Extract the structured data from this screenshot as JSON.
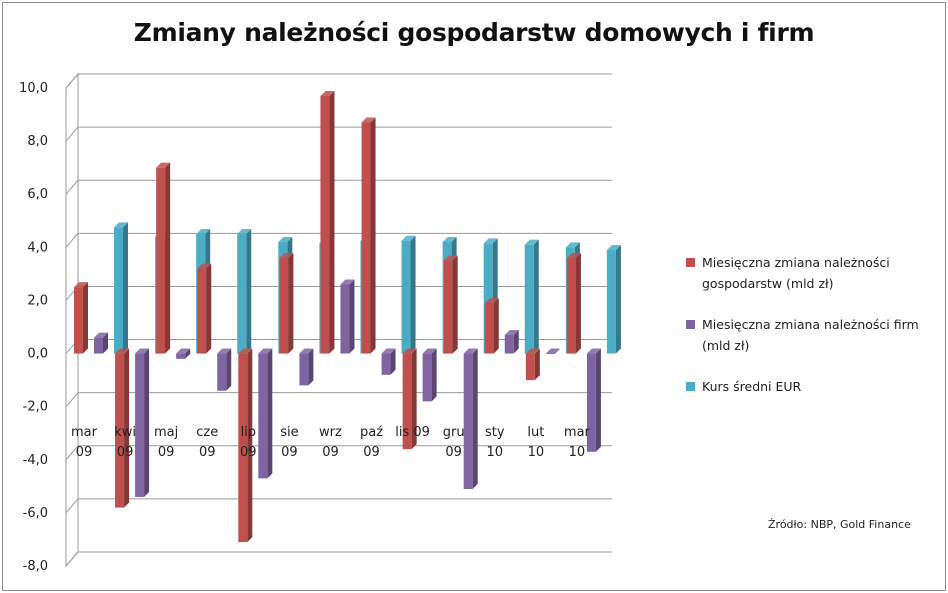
{
  "chart_data": {
    "type": "bar",
    "title": "Zmiany należności gospodarstw domowych i firm",
    "categories": [
      [
        "mar",
        "09"
      ],
      [
        "kwi",
        "09"
      ],
      [
        "maj",
        "09"
      ],
      [
        "cze",
        "09"
      ],
      [
        "lip",
        "09"
      ],
      [
        "sie",
        "09"
      ],
      [
        "wrz",
        "09"
      ],
      [
        "paź",
        "09"
      ],
      [
        "lis 09",
        ""
      ],
      [
        "gru",
        "09"
      ],
      [
        "sty",
        "10"
      ],
      [
        "lut",
        "10"
      ],
      [
        "mar",
        "10"
      ]
    ],
    "series": [
      {
        "name": "Miesięczna zmiana należności gospodarstw  (mld zł)",
        "color": "#c0504d",
        "values": [
          2.5,
          -5.8,
          7.0,
          3.2,
          -7.1,
          3.6,
          9.7,
          8.7,
          -3.6,
          3.5,
          1.9,
          -1.0,
          3.6
        ]
      },
      {
        "name": "Miesięczna zmiana należności firm (mld zł)",
        "color": "#8064a2",
        "values": [
          0.6,
          -5.4,
          -0.2,
          -1.4,
          -4.7,
          -1.2,
          2.6,
          -0.8,
          -1.8,
          -5.1,
          0.7,
          0.0,
          -3.7
        ]
      },
      {
        "name": "Kurs średni EUR",
        "color": "#4bacc6",
        "values": [
          4.75,
          4.4,
          4.5,
          4.5,
          4.2,
          4.15,
          4.25,
          4.25,
          4.2,
          4.15,
          4.1,
          4.0,
          3.9
        ]
      }
    ],
    "yticks": [
      "10,0",
      "8,0",
      "6,0",
      "4,0",
      "2,0",
      "0,0",
      "-2,0",
      "-4,0",
      "-6,0",
      "-8,0"
    ],
    "ylim": [
      -8,
      10
    ],
    "legend_position": "right",
    "grid": true
  },
  "source_note": "Źródło: NBP, Gold Finance"
}
